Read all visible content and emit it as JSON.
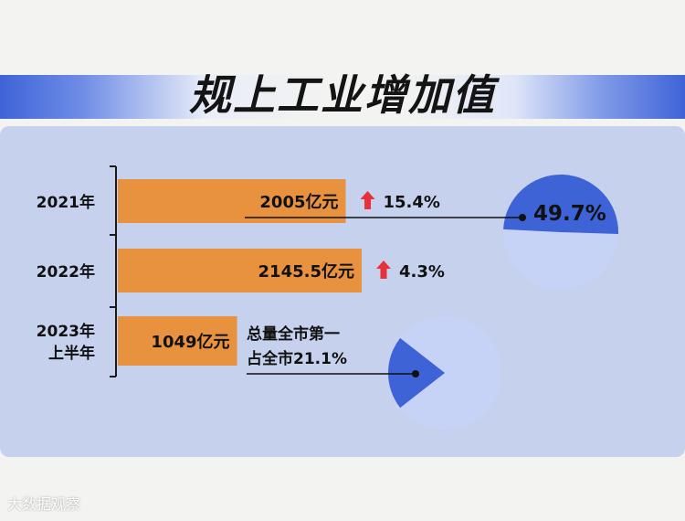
{
  "title": "规上工业增加值",
  "watermark": "大数据观察",
  "colors": {
    "bar": "#e8923f",
    "panel": "#c6d1ee",
    "pie_base": "#c7d3f6",
    "pie_slice": "#3d63d6",
    "arrow": "#e8303a",
    "text": "#111111"
  },
  "chart_data": [
    {
      "type": "bar",
      "orientation": "horizontal",
      "categories": [
        "2021年",
        "2022年",
        "2023年\n上半年"
      ],
      "values": [
        2005,
        2145.5,
        1049
      ],
      "value_labels": [
        "2005亿元",
        "2145.5亿元",
        "1049亿元"
      ],
      "growth": [
        {
          "text": "15.4%",
          "arrow": "up"
        },
        {
          "text": "4.3%",
          "arrow": "up"
        },
        null
      ],
      "note": [
        "总量全市第一",
        "占全市21.1%"
      ]
    },
    {
      "type": "pie",
      "label": "49.7%",
      "share": 0.497
    },
    {
      "type": "pie",
      "share": 0.211
    }
  ]
}
